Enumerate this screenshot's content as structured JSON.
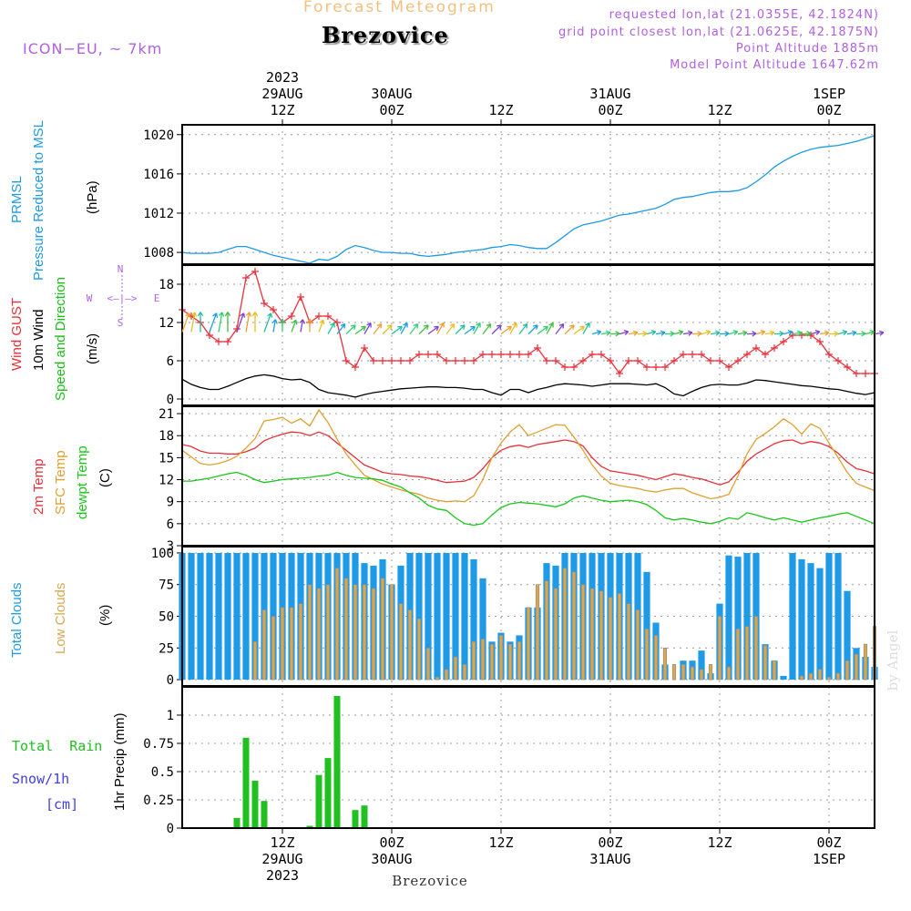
{
  "header": {
    "product": "Forecast Meteogram",
    "location": "Brezovice",
    "model": "ICON−EU,  ~ 7km",
    "requested": "requested lon,lat (21.0355E, 42.1824N)",
    "grid_point": "grid point closest lon,lat (21.0625E, 42.1875N)",
    "point_altitude": "Point Altitude  1885m",
    "model_altitude": "Model Point Altitude  1647.62m",
    "footer_location": "Brezovice",
    "watermark": "by Angel"
  },
  "colors": {
    "pressure": "#1e9be6",
    "gust": "#e8303a",
    "wind10m": "#000000",
    "direction": "#18c018",
    "temp2m": "#e8303a",
    "sfctemp": "#e0a030",
    "dewpt": "#18c818",
    "total_clouds": "#1e9be6",
    "low_clouds": "#d8a850",
    "rain": "#20c020",
    "snow": "#4040e0",
    "header_orange": "#f0c080",
    "header_violet": "#b060e0"
  },
  "time_axis": {
    "top": [
      {
        "hour": 12,
        "lines": [
          "2023",
          "29AUG",
          "12Z"
        ]
      },
      {
        "hour": 24,
        "lines": [
          "30AUG",
          "00Z"
        ]
      },
      {
        "hour": 36,
        "lines": [
          "12Z"
        ]
      },
      {
        "hour": 48,
        "lines": [
          "31AUG",
          "00Z"
        ]
      },
      {
        "hour": 60,
        "lines": [
          "12Z"
        ]
      },
      {
        "hour": 72,
        "lines": [
          "1SEP",
          "00Z"
        ]
      }
    ],
    "bottom": [
      {
        "hour": 12,
        "lines": [
          "12Z",
          "29AUG",
          "2023"
        ]
      },
      {
        "hour": 24,
        "lines": [
          "00Z",
          "30AUG"
        ]
      },
      {
        "hour": 36,
        "lines": [
          "12Z"
        ]
      },
      {
        "hour": 48,
        "lines": [
          "00Z",
          "31AUG"
        ]
      },
      {
        "hour": 60,
        "lines": [
          "12Z"
        ]
      },
      {
        "hour": 72,
        "lines": [
          "00Z",
          "1SEP"
        ]
      }
    ]
  },
  "panels": {
    "pressure": {
      "labels": [
        "PRMSL",
        "Pressure Reduced to MSL"
      ],
      "unit": "(hPa)"
    },
    "wind": {
      "labels": [
        "Wind GUST",
        "10m Wind",
        "Speed and Direction"
      ],
      "unit": "(m/s)",
      "compass": {
        "n": "N",
        "s": "S",
        "w": "W",
        "e": "E",
        "row": "<—|—>"
      }
    },
    "temp": {
      "labels": [
        "2m Temp",
        "SFC Temp",
        "dewpt Temp"
      ],
      "unit": "(C)"
    },
    "clouds": {
      "labels": [
        "Total Clouds",
        "Low Clouds"
      ],
      "unit": "(%)"
    },
    "precip": {
      "labels": [
        "Total  Rain",
        "Snow/1h",
        "[cm]"
      ],
      "ylabel": "1hr Precip (mm)"
    }
  },
  "chart_data": [
    {
      "type": "line",
      "title": "PRMSL Pressure Reduced to MSL",
      "ylabel": "(hPa)",
      "x_start_hour": 1,
      "x_step_hours": 1,
      "xlim": [
        1,
        77
      ],
      "ylim": [
        1006.8,
        1021.0
      ],
      "yticks": [
        1008,
        1012,
        1016,
        1020
      ],
      "series": [
        {
          "name": "PRMSL",
          "values": [
            1008.0,
            1007.9,
            1007.9,
            1007.9,
            1008.0,
            1008.3,
            1008.6,
            1008.6,
            1008.3,
            1008.0,
            1007.7,
            1007.5,
            1007.3,
            1007.1,
            1006.9,
            1007.3,
            1007.2,
            1007.6,
            1008.3,
            1008.7,
            1008.5,
            1008.2,
            1008.0,
            1008.0,
            1007.9,
            1007.9,
            1007.7,
            1007.6,
            1007.7,
            1007.8,
            1008.0,
            1008.1,
            1008.2,
            1008.3,
            1008.5,
            1008.6,
            1008.8,
            1008.7,
            1008.5,
            1008.4,
            1008.4,
            1009.0,
            1009.7,
            1010.4,
            1010.8,
            1011.0,
            1011.2,
            1011.5,
            1011.8,
            1011.9,
            1012.1,
            1012.3,
            1012.5,
            1012.9,
            1013.4,
            1013.6,
            1013.7,
            1013.9,
            1014.1,
            1014.2,
            1014.2,
            1014.3,
            1014.6,
            1015.2,
            1015.9,
            1016.7,
            1017.3,
            1017.8,
            1018.2,
            1018.5,
            1018.7,
            1018.8,
            1018.9,
            1019.1,
            1019.3,
            1019.6,
            1019.9
          ]
        }
      ]
    },
    {
      "type": "line",
      "title": "Wind GUST / 10m Wind",
      "ylabel": "(m/s)",
      "x_start_hour": 1,
      "x_step_hours": 1,
      "xlim": [
        1,
        77
      ],
      "ylim": [
        -1.0,
        21.0
      ],
      "yticks": [
        0,
        6,
        12,
        18
      ],
      "series": [
        {
          "name": "Wind GUST",
          "marker": "+",
          "values": [
            14,
            13,
            12,
            10,
            9,
            9,
            11,
            19,
            20,
            15,
            14,
            12,
            13,
            16,
            12,
            13,
            13,
            12,
            6,
            5,
            8,
            6,
            6,
            6,
            6,
            6,
            7,
            7,
            7,
            6,
            6,
            6,
            6,
            7,
            7,
            7,
            7,
            7,
            7,
            8,
            6,
            6,
            5,
            5,
            6,
            7,
            7,
            6,
            4,
            6,
            6,
            5,
            5,
            5,
            6,
            7,
            7,
            7,
            6,
            6,
            5,
            6,
            7,
            8,
            7,
            8,
            9,
            10,
            10,
            10,
            9,
            7,
            6,
            5,
            4,
            4,
            4
          ]
        },
        {
          "name": "10m Wind",
          "values": [
            3.1,
            2.3,
            1.8,
            1.5,
            1.5,
            2.0,
            2.6,
            3.2,
            3.6,
            3.8,
            3.6,
            3.2,
            3.0,
            3.1,
            2.6,
            1.5,
            1.0,
            0.8,
            0.6,
            0.3,
            0.7,
            1.0,
            1.2,
            1.4,
            1.6,
            1.7,
            1.8,
            1.9,
            1.9,
            1.8,
            1.8,
            1.7,
            1.5,
            1.5,
            1.0,
            0.6,
            1.5,
            1.5,
            1.0,
            1.5,
            1.8,
            2.2,
            2.4,
            2.3,
            2.2,
            2.0,
            2.2,
            2.4,
            2.4,
            2.4,
            2.3,
            2.2,
            2.4,
            1.8,
            0.8,
            0.5,
            1.2,
            1.8,
            2.2,
            2.3,
            2.2,
            2.2,
            2.5,
            3.0,
            2.9,
            2.7,
            2.5,
            2.3,
            2.1,
            2.0,
            1.8,
            1.6,
            1.5,
            1.2,
            0.9,
            0.7,
            1.0
          ]
        }
      ]
    },
    {
      "type": "line",
      "title": "2m Temp / SFC Temp / dewpt Temp",
      "ylabel": "(C)",
      "x_start_hour": 1,
      "x_step_hours": 1,
      "xlim": [
        1,
        77
      ],
      "ylim": [
        3,
        22
      ],
      "yticks": [
        3,
        6,
        9,
        12,
        15,
        18,
        21
      ],
      "series": [
        {
          "name": "2m Temp",
          "values": [
            16.8,
            16.5,
            15.9,
            15.6,
            15.6,
            15.5,
            15.5,
            15.8,
            16.3,
            17.3,
            17.8,
            18.2,
            18.5,
            18.4,
            18.0,
            18.5,
            18.0,
            17.0,
            16.0,
            15.0,
            14.0,
            13.5,
            13.0,
            12.8,
            12.7,
            12.5,
            12.4,
            12.2,
            11.9,
            11.6,
            11.7,
            11.8,
            12.3,
            13.5,
            15.0,
            16.0,
            16.5,
            16.7,
            16.4,
            16.8,
            17.0,
            17.2,
            17.4,
            17.2,
            16.6,
            15.0,
            13.8,
            13.2,
            13.0,
            12.8,
            12.6,
            12.3,
            12.0,
            12.4,
            12.8,
            12.6,
            12.3,
            12.1,
            11.7,
            11.3,
            11.7,
            13.0,
            14.5,
            15.5,
            16.2,
            16.9,
            17.3,
            17.4,
            16.9,
            17.2,
            17.0,
            16.5,
            15.6,
            14.4,
            13.5,
            13.2,
            12.8
          ]
        },
        {
          "name": "SFC Temp",
          "values": [
            16.0,
            15.1,
            14.2,
            14.0,
            14.2,
            14.6,
            15.2,
            16.3,
            17.6,
            20.0,
            20.2,
            20.5,
            19.7,
            20.3,
            19.3,
            21.5,
            19.8,
            17.5,
            15.5,
            14.0,
            12.6,
            12.0,
            11.4,
            11.0,
            10.6,
            10.3,
            10.0,
            9.5,
            9.2,
            9.0,
            9.1,
            9.0,
            9.8,
            12.0,
            15.0,
            17.0,
            18.5,
            19.5,
            18.0,
            18.5,
            19.0,
            19.5,
            19.4,
            17.8,
            16.0,
            14.0,
            12.5,
            11.5,
            11.2,
            11.0,
            10.8,
            10.5,
            10.3,
            10.6,
            10.8,
            10.8,
            10.2,
            9.8,
            9.4,
            9.6,
            10.0,
            12.5,
            15.5,
            17.5,
            18.3,
            19.2,
            20.3,
            19.5,
            18.2,
            19.6,
            19.0,
            17.0,
            15.0,
            13.0,
            11.5,
            11.0,
            10.5
          ]
        },
        {
          "name": "dewpt Temp",
          "values": [
            11.8,
            11.8,
            12.0,
            12.2,
            12.5,
            12.8,
            13.0,
            12.6,
            12.0,
            11.6,
            11.8,
            12.0,
            12.1,
            12.2,
            12.3,
            12.5,
            12.6,
            13.0,
            12.6,
            12.3,
            12.2,
            12.1,
            11.9,
            11.4,
            11.0,
            10.2,
            9.5,
            8.5,
            8.0,
            7.8,
            6.8,
            6.0,
            5.8,
            6.0,
            7.2,
            8.2,
            8.7,
            8.9,
            8.8,
            8.7,
            8.5,
            8.3,
            8.7,
            9.5,
            9.8,
            9.5,
            9.2,
            9.0,
            9.1,
            9.2,
            9.0,
            8.6,
            7.8,
            6.8,
            6.5,
            6.7,
            6.5,
            6.2,
            6.0,
            6.3,
            6.8,
            6.6,
            7.5,
            7.2,
            6.8,
            6.5,
            6.8,
            6.5,
            6.2,
            6.5,
            6.8,
            7.0,
            7.3,
            7.5,
            7.0,
            6.5,
            6.0
          ]
        }
      ]
    },
    {
      "type": "bar",
      "title": "Total Clouds / Low Clouds",
      "ylabel": "(%)",
      "x_start_hour": 1,
      "x_step_hours": 1,
      "xlim": [
        1,
        77
      ],
      "ylim": [
        -5,
        105
      ],
      "yticks": [
        0,
        25,
        50,
        75,
        100
      ],
      "series": [
        {
          "name": "Total Clouds",
          "values": [
            100,
            100,
            100,
            100,
            100,
            100,
            100,
            100,
            100,
            100,
            100,
            100,
            100,
            100,
            100,
            100,
            100,
            100,
            100,
            100,
            92,
            90,
            95,
            75,
            90,
            100,
            100,
            100,
            100,
            100,
            100,
            100,
            95,
            80,
            30,
            37,
            30,
            35,
            57,
            57,
            92,
            90,
            100,
            100,
            100,
            100,
            100,
            100,
            100,
            100,
            100,
            85,
            45,
            12,
            0,
            15,
            15,
            23,
            5,
            60,
            98,
            97,
            100,
            100,
            28,
            15,
            3,
            100,
            95,
            92,
            88,
            100,
            100,
            70,
            25,
            18,
            10
          ]
        },
        {
          "name": "Low Clouds",
          "values": [
            0,
            0,
            0,
            0,
            0,
            0,
            0,
            0,
            30,
            55,
            50,
            57,
            57,
            60,
            75,
            72,
            75,
            88,
            80,
            75,
            75,
            72,
            80,
            75,
            60,
            55,
            48,
            25,
            2,
            8,
            18,
            12,
            30,
            32,
            28,
            35,
            28,
            30,
            57,
            75,
            78,
            72,
            88,
            85,
            75,
            72,
            70,
            65,
            68,
            60,
            55,
            40,
            35,
            25,
            12,
            12,
            10,
            8,
            12,
            50,
            10,
            40,
            42,
            50,
            27,
            15,
            0,
            0,
            3,
            5,
            8,
            2,
            5,
            15,
            20,
            28,
            42
          ]
        }
      ]
    },
    {
      "type": "bar",
      "title": "1hr Precip (mm)",
      "ylabel": "1hr Precip (mm)",
      "x_start_hour": 1,
      "x_step_hours": 1,
      "xlim": [
        1,
        77
      ],
      "ylim": [
        0,
        1.25
      ],
      "yticks": [
        0,
        0.25,
        0.5,
        0.75,
        1
      ],
      "series": [
        {
          "name": "Total Rain",
          "values": [
            0,
            0,
            0,
            0,
            0,
            0,
            0.09,
            0.8,
            0.42,
            0.24,
            0,
            0,
            0,
            0,
            0.02,
            0.47,
            0.62,
            1.17,
            0,
            0.16,
            0.2,
            0,
            0,
            0,
            0,
            0,
            0,
            0,
            0,
            0,
            0,
            0,
            0,
            0,
            0,
            0,
            0,
            0,
            0,
            0,
            0,
            0,
            0,
            0,
            0,
            0,
            0,
            0,
            0,
            0,
            0,
            0,
            0,
            0,
            0,
            0,
            0,
            0,
            0,
            0,
            0,
            0,
            0,
            0,
            0,
            0,
            0,
            0,
            0,
            0,
            0,
            0,
            0,
            0,
            0,
            0,
            0
          ]
        },
        {
          "name": "Snow/1h",
          "values": [
            0,
            0,
            0,
            0,
            0,
            0,
            0,
            0,
            0,
            0,
            0,
            0,
            0,
            0,
            0,
            0,
            0,
            0,
            0,
            0,
            0,
            0,
            0,
            0,
            0,
            0,
            0,
            0,
            0,
            0,
            0,
            0,
            0,
            0,
            0,
            0,
            0,
            0,
            0,
            0,
            0,
            0,
            0,
            0,
            0,
            0,
            0,
            0,
            0,
            0,
            0,
            0,
            0,
            0,
            0,
            0,
            0,
            0,
            0,
            0,
            0,
            0,
            0,
            0,
            0,
            0,
            0,
            0,
            0,
            0,
            0,
            0,
            0,
            0,
            0,
            0,
            0
          ]
        }
      ]
    }
  ]
}
